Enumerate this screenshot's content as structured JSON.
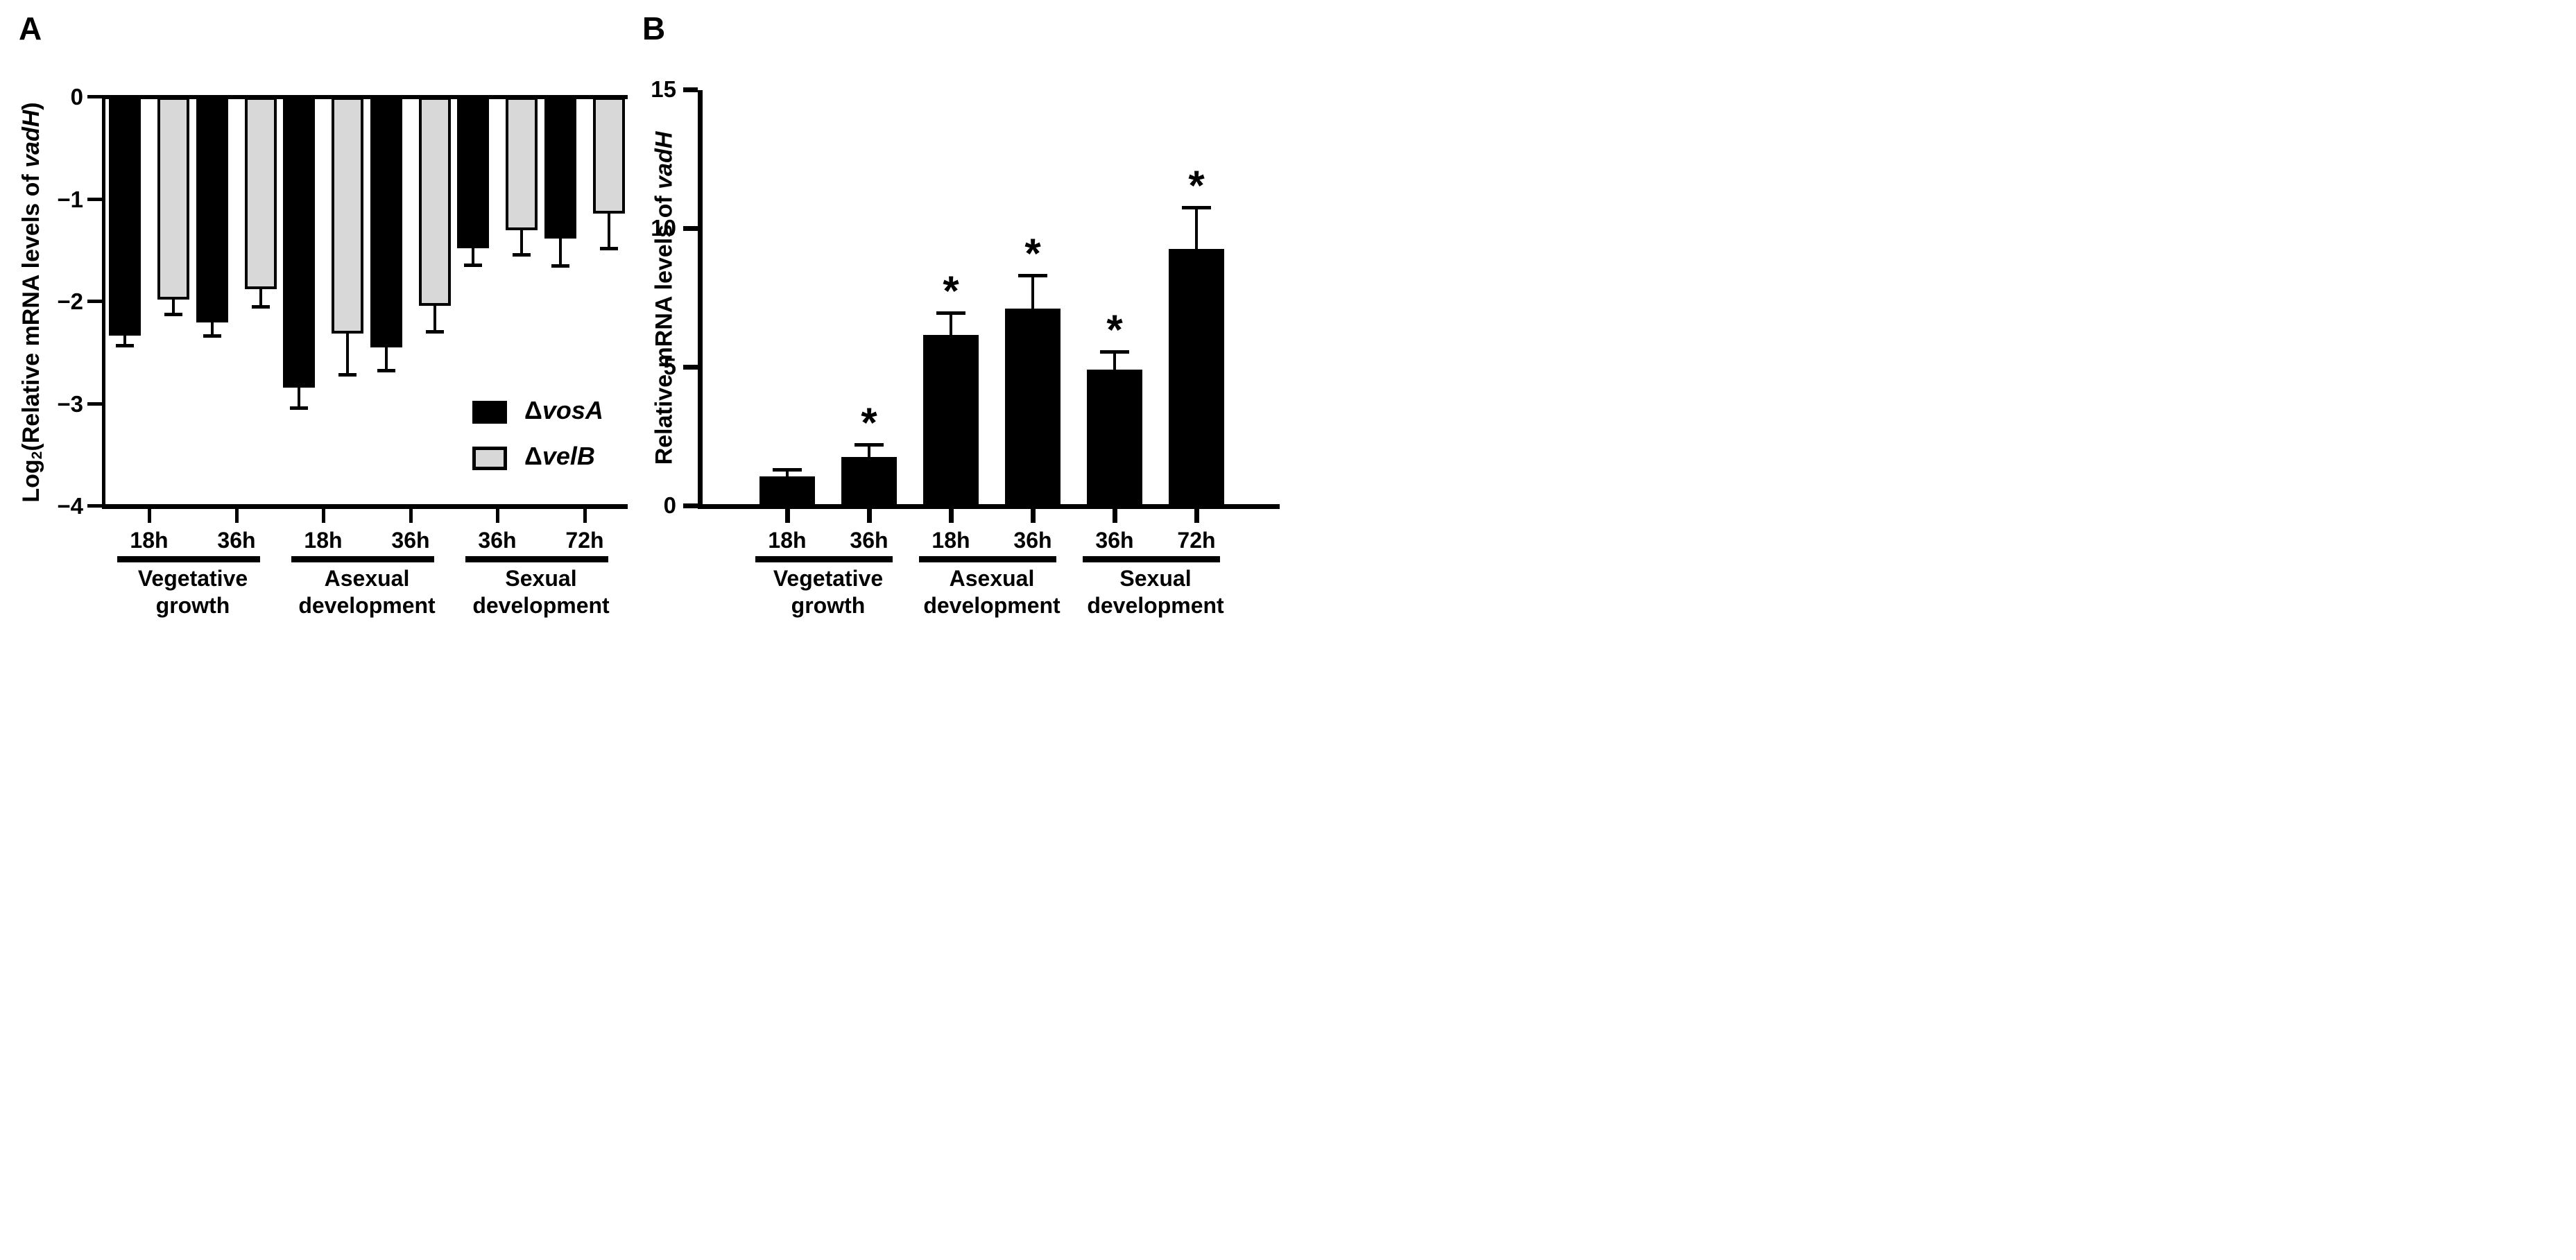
{
  "panels": {
    "a": {
      "letter": "A"
    },
    "b": {
      "letter": "B"
    }
  },
  "chart_data": [
    {
      "panel": "A",
      "type": "bar",
      "title": "",
      "xlabel": "",
      "ylabel": "Log2(Relative mRNA levels of vadH)",
      "ylabel_parts": {
        "prefix": "Log",
        "subscript": "2",
        "mid": "(Relative mRNA levels of ",
        "gene": "vadH",
        "suffix": ")"
      },
      "ylim": [
        -4,
        0
      ],
      "yticks": [
        0,
        -1,
        -2,
        -3,
        -4
      ],
      "ytick_labels": [
        "0",
        "−1",
        "−2",
        "−3",
        "−4"
      ],
      "bars_hang_from_zero": true,
      "grid": false,
      "legend_position": "inside bottom-right",
      "categories": [
        "18h",
        "36h",
        "18h",
        "36h",
        "36h",
        "72h"
      ],
      "groups": [
        {
          "line1": "Vegetative",
          "line2": "growth",
          "slots": [
            0,
            1
          ]
        },
        {
          "line1": "Asexual",
          "line2": "development",
          "slots": [
            2,
            3
          ]
        },
        {
          "line1": "Sexual",
          "line2": "development",
          "slots": [
            4,
            5
          ]
        }
      ],
      "series": [
        {
          "name": "ΔvosA",
          "name_delta": "Δ",
          "name_gene": "vosA",
          "fill": "#000000",
          "border": "#000000",
          "values": [
            -2.33,
            -2.2,
            -2.84,
            -2.45,
            -1.48,
            -1.38
          ],
          "errors": [
            0.1,
            0.13,
            0.2,
            0.22,
            0.16,
            0.27
          ]
        },
        {
          "name": "ΔvelB",
          "name_delta": "Δ",
          "name_gene": "velB",
          "fill": "#d8d8d8",
          "border": "#000000",
          "values": [
            -1.98,
            -1.88,
            -2.31,
            -2.04,
            -1.3,
            -1.14
          ],
          "errors": [
            0.14,
            0.17,
            0.4,
            0.25,
            0.24,
            0.34
          ]
        }
      ]
    },
    {
      "panel": "B",
      "type": "bar",
      "title": "",
      "xlabel": "",
      "ylabel": "Relative mRNA levels of vadH",
      "ylabel_parts": {
        "prefix": "Relative mRNA levels of ",
        "gene": "vadH"
      },
      "ylim": [
        0,
        15
      ],
      "yticks": [
        15,
        10,
        5,
        0
      ],
      "ytick_labels": [
        "15",
        "10",
        "5",
        "0"
      ],
      "grid": false,
      "sig_symbol": "*",
      "categories": [
        "18h",
        "36h",
        "18h",
        "36h",
        "36h",
        "72h"
      ],
      "groups": [
        {
          "line1": "Vegetative",
          "line2": "growth",
          "slots": [
            0,
            1
          ]
        },
        {
          "line1": "Asexual",
          "line2": "development",
          "slots": [
            2,
            3
          ]
        },
        {
          "line1": "Sexual",
          "line2": "development",
          "slots": [
            4,
            5
          ]
        }
      ],
      "series": [
        {
          "name": "vadH relative mRNA level",
          "fill": "#000000",
          "border": "#000000",
          "values": [
            1.0,
            1.7,
            6.1,
            7.05,
            4.85,
            9.2
          ],
          "errors": [
            0.25,
            0.45,
            0.8,
            1.2,
            0.65,
            1.5
          ],
          "significant": [
            false,
            true,
            true,
            true,
            true,
            true
          ]
        }
      ]
    }
  ]
}
